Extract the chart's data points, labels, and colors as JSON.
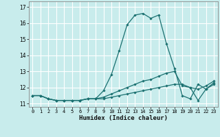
{
  "xlabel": "Humidex (Indice chaleur)",
  "bg_color": "#c8ecec",
  "grid_color": "#ffffff",
  "line_color": "#1a7070",
  "xlim": [
    -0.5,
    23.5
  ],
  "ylim": [
    10.8,
    17.35
  ],
  "yticks": [
    11,
    12,
    13,
    14,
    15,
    16,
    17
  ],
  "xticks": [
    0,
    1,
    2,
    3,
    4,
    5,
    6,
    7,
    8,
    9,
    10,
    11,
    12,
    13,
    14,
    15,
    16,
    17,
    18,
    19,
    20,
    21,
    22,
    23
  ],
  "series": [
    {
      "x": [
        0,
        1,
        2,
        3,
        4,
        5,
        6,
        7,
        8,
        9,
        10,
        11,
        12,
        13,
        14,
        15,
        16,
        17,
        18,
        19,
        20,
        21,
        22,
        23
      ],
      "y": [
        11.5,
        11.5,
        11.3,
        11.2,
        11.2,
        11.2,
        11.2,
        11.3,
        11.3,
        11.8,
        12.8,
        14.3,
        15.9,
        16.5,
        16.6,
        16.3,
        16.5,
        14.7,
        13.2,
        11.5,
        11.3,
        12.2,
        11.9,
        12.2
      ]
    },
    {
      "x": [
        0,
        1,
        2,
        3,
        4,
        5,
        6,
        7,
        8,
        9,
        10,
        11,
        12,
        13,
        14,
        15,
        16,
        17,
        18,
        19,
        20,
        21,
        22,
        23
      ],
      "y": [
        11.5,
        11.5,
        11.3,
        11.2,
        11.2,
        11.2,
        11.2,
        11.3,
        11.3,
        11.3,
        11.4,
        11.5,
        11.6,
        11.7,
        11.8,
        11.9,
        12.0,
        12.1,
        12.2,
        12.2,
        12.0,
        11.2,
        11.9,
        12.3
      ]
    },
    {
      "x": [
        0,
        1,
        2,
        3,
        4,
        5,
        6,
        7,
        8,
        9,
        10,
        11,
        12,
        13,
        14,
        15,
        16,
        17,
        18,
        19,
        20,
        21,
        22,
        23
      ],
      "y": [
        11.5,
        11.5,
        11.3,
        11.2,
        11.2,
        11.2,
        11.2,
        11.3,
        11.3,
        11.4,
        11.6,
        11.8,
        12.0,
        12.2,
        12.4,
        12.5,
        12.7,
        12.9,
        13.0,
        12.1,
        12.0,
        11.9,
        12.1,
        12.4
      ]
    }
  ]
}
